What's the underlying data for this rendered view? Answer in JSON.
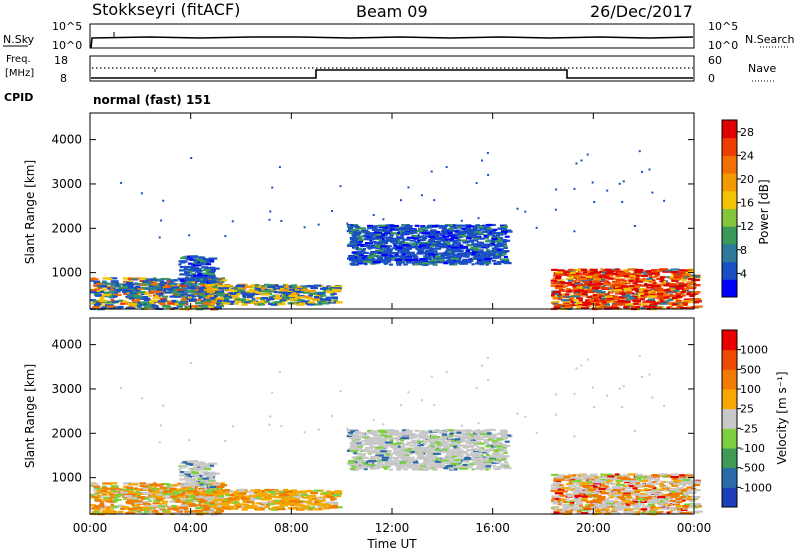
{
  "header": {
    "station": "Stokkseyri (fitACF)",
    "beam": "Beam 09",
    "date": "26/Dec/2017"
  },
  "noise_panel": {
    "left_label": "N.Sky",
    "right_label": "N.Search",
    "ticks": [
      "10^5",
      "10^0"
    ]
  },
  "freq_panel": {
    "left_label_1": "Freq.",
    "left_label_2": "[MHz]",
    "left_ticks": [
      "18",
      "8"
    ],
    "right_label": "Nave",
    "right_ticks": [
      "60",
      "0"
    ]
  },
  "cpid": {
    "label": "CPID",
    "value": "normal (fast) 151"
  },
  "chart_data": [
    {
      "type": "heatmap",
      "name": "power",
      "ylabel": "Slant Range [km]",
      "ylim": [
        180,
        4600
      ],
      "yticks": [
        "4000",
        "3000",
        "2000",
        "1000"
      ],
      "xlim_hours": [
        0,
        24
      ],
      "colorbar": {
        "label": "Power [dB]",
        "ticks": [
          "28",
          "24",
          "20",
          "16",
          "12",
          "8",
          "4"
        ],
        "colors": [
          "#0000ff",
          "#1a4fc4",
          "#2f7a9a",
          "#3a9a5a",
          "#86c53a",
          "#f2c300",
          "#f39a00",
          "#f37000",
          "#ee3d00",
          "#e00000"
        ]
      },
      "regions": [
        {
          "t0": 0.0,
          "t1": 5.2,
          "r0": 200,
          "r1": 900,
          "level": "mixed-high"
        },
        {
          "t0": 3.5,
          "t1": 4.8,
          "r0": 800,
          "r1": 1400,
          "level": "low"
        },
        {
          "t0": 4.5,
          "t1": 9.8,
          "r0": 300,
          "r1": 750,
          "level": "mid"
        },
        {
          "t0": 10.2,
          "t1": 16.5,
          "r0": 1200,
          "r1": 2100,
          "level": "low"
        },
        {
          "t0": 18.3,
          "t1": 24.0,
          "r0": 200,
          "r1": 1100,
          "level": "high"
        }
      ]
    },
    {
      "type": "heatmap",
      "name": "velocity",
      "ylabel": "Slant Range [km]",
      "xlabel": "Time UT",
      "ylim": [
        180,
        4600
      ],
      "yticks": [
        "4000",
        "3000",
        "2000",
        "1000"
      ],
      "xticks": [
        "00:00",
        "04:00",
        "08:00",
        "12:00",
        "16:00",
        "20:00",
        "00:00"
      ],
      "colorbar": {
        "label": "Velocity [m s⁻¹]",
        "ticks": [
          "1000",
          "500",
          "100",
          "25",
          "-25",
          "-100",
          "-500",
          "-1000"
        ],
        "colors": [
          "#1c3fb8",
          "#2a6aa8",
          "#3f9a56",
          "#7fd040",
          "#c8c8c8",
          "#f5a800",
          "#f07b00",
          "#ee4a00",
          "#e80000"
        ]
      }
    }
  ]
}
